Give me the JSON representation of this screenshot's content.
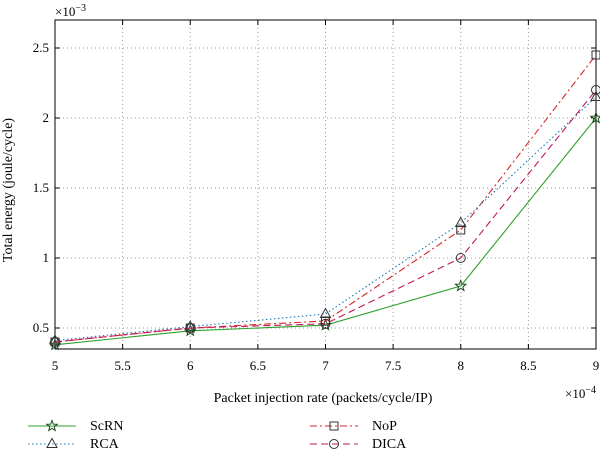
{
  "chart_data": {
    "type": "line",
    "title": "",
    "xlabel": "Packet injection rate (packets/cycle/IP)",
    "ylabel": "Total energy (joule/cycle)",
    "x_multiplier": "×10",
    "x_multiplier_exp": "−4",
    "y_multiplier": "×10",
    "y_multiplier_exp": "−3",
    "xlim": [
      5,
      9
    ],
    "ylim": [
      0.35,
      2.7
    ],
    "x_ticks": [
      5,
      5.5,
      6,
      6.5,
      7,
      7.5,
      8,
      8.5,
      9
    ],
    "x_tick_labels": [
      "5",
      "5.5",
      "6",
      "6.5",
      "7",
      "7.5",
      "8",
      "8.5",
      "9"
    ],
    "y_ticks": [
      0.5,
      1,
      1.5,
      2,
      2.5
    ],
    "y_tick_labels": [
      "0.5",
      "1",
      "1.5",
      "2",
      "2.5"
    ],
    "grid": true,
    "legend_position": "bottom",
    "x": [
      5,
      6,
      7,
      8,
      9
    ],
    "series": [
      {
        "name": "ScRN",
        "values": [
          0.38,
          0.48,
          0.52,
          0.8,
          2.0
        ],
        "color": "#2ca02c",
        "dash": "",
        "marker": "star"
      },
      {
        "name": "NoP",
        "values": [
          0.4,
          0.5,
          0.55,
          1.2,
          2.45
        ],
        "color": "#d62728",
        "dash": "7 3 2 3",
        "marker": "square"
      },
      {
        "name": "RCA",
        "values": [
          0.41,
          0.51,
          0.6,
          1.25,
          2.15
        ],
        "color": "#1f77b4",
        "dash": "1.5 2.5",
        "marker": "triangle"
      },
      {
        "name": "DICA",
        "values": [
          0.4,
          0.5,
          0.53,
          1.0,
          2.2
        ],
        "color": "#c2185b",
        "dash": "7 4",
        "marker": "circle"
      }
    ]
  }
}
